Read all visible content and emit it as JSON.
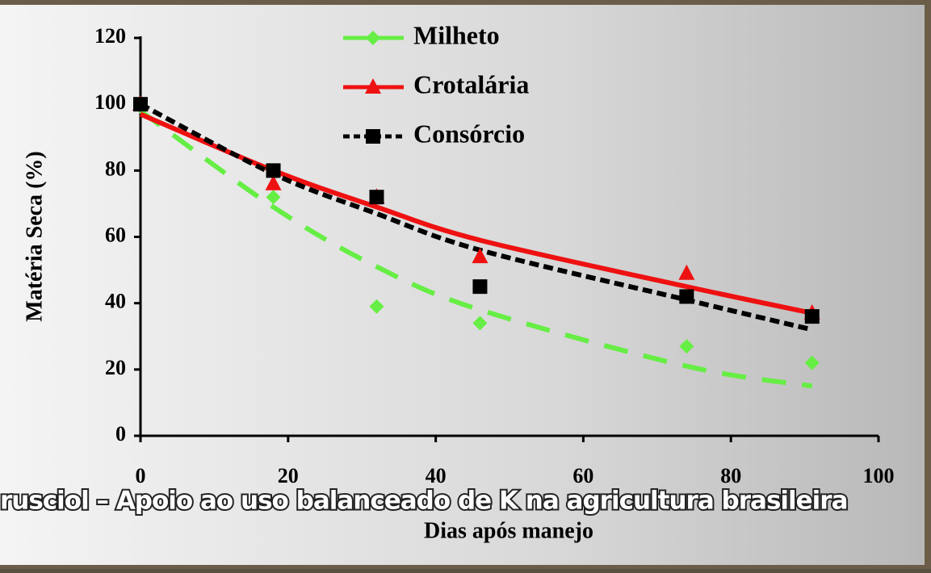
{
  "chart_data": {
    "type": "scatter-trend",
    "x_label": "Dias após manejo",
    "y_label": "Matéria Seca (%)",
    "caption": "rusciol – Apoio ao uso balanceado de K na agricultura brasileira",
    "x": [
      0,
      18,
      32,
      46,
      74,
      91
    ],
    "series": [
      {
        "name": "Milheto",
        "color": "#66ee44",
        "marker": "diamond",
        "dash": "long",
        "values": [
          100,
          72,
          39,
          34,
          27,
          22
        ],
        "fit_values": [
          98,
          69,
          51,
          38,
          21,
          15
        ]
      },
      {
        "name": "Crotalária",
        "color": "#ee1111",
        "marker": "triangle",
        "dash": "solid",
        "values": [
          100,
          76,
          72,
          54,
          49,
          37
        ],
        "fit_values": [
          97,
          80,
          69,
          59,
          45,
          37
        ]
      },
      {
        "name": "Consórcio",
        "color": "#000000",
        "marker": "square",
        "dash": "short",
        "values": [
          100,
          80,
          72,
          45,
          42,
          36
        ],
        "fit_values": [
          100,
          79,
          67,
          56,
          41,
          32
        ]
      }
    ],
    "xlim": [
      0,
      100
    ],
    "xticks": [
      0,
      20,
      40,
      60,
      80,
      100
    ],
    "ylim": [
      0,
      120
    ],
    "yticks": [
      0,
      20,
      40,
      60,
      80,
      100,
      120
    ]
  }
}
